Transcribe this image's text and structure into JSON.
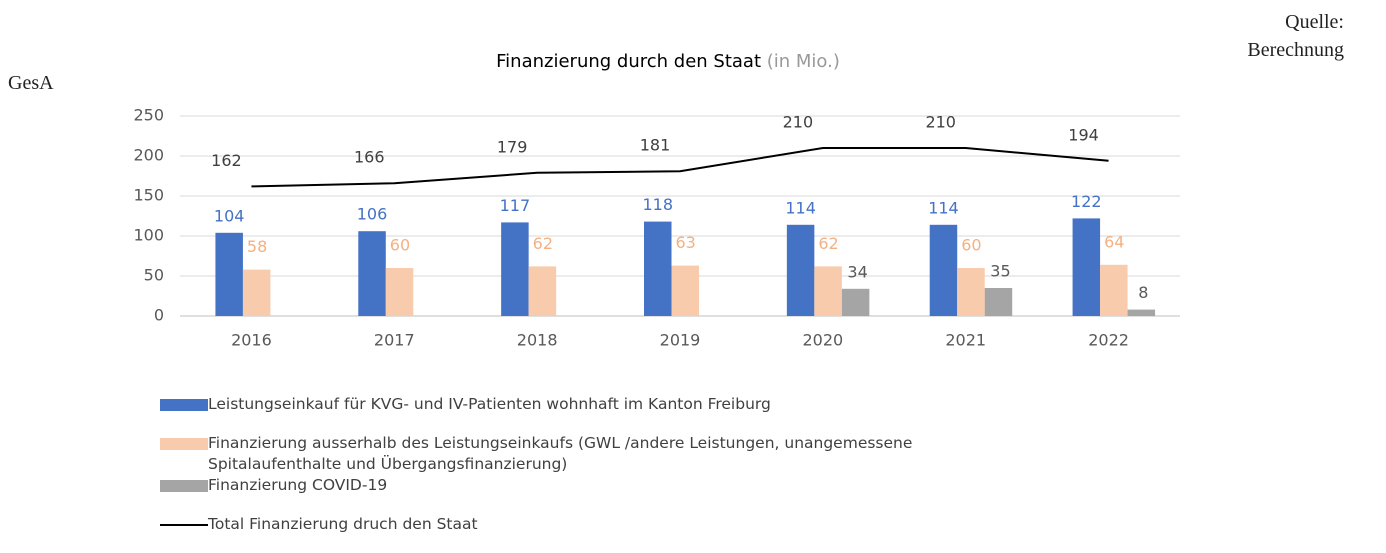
{
  "source_label": "Quelle:",
  "source_text": "Berechnung",
  "source_name": "GesA",
  "chart_data": {
    "type": "bar",
    "title": "Finanzierung durch den Staat",
    "subtitle": "(in Mio.)",
    "categories": [
      "2016",
      "2017",
      "2018",
      "2019",
      "2020",
      "2021",
      "2022"
    ],
    "series": [
      {
        "name": "Leistungseinkauf für KVG- und IV-Patienten wohnhaft im Kanton Freiburg",
        "color": "#4472c4",
        "label_color": "#4472c4",
        "values": [
          104,
          106,
          117,
          118,
          114,
          114,
          122
        ]
      },
      {
        "name": "Finanzierung ausserhalb des Leistungseinkaufs (GWL /andere Leistungen, unangemessene Spitalaufenthalte und Übergangsfinanzierung)",
        "color": "#f8cbad",
        "label_color": "#f4b183",
        "values": [
          58,
          60,
          62,
          63,
          62,
          60,
          64
        ]
      },
      {
        "name": "Finanzierung COVID-19",
        "color": "#a5a5a5",
        "label_color": "#595959",
        "values": [
          null,
          null,
          null,
          null,
          34,
          35,
          8
        ]
      },
      {
        "name": "Total Finanzierung druch den Staat",
        "type": "line",
        "color": "#000000",
        "label_color": "#404040",
        "values": [
          162,
          166,
          179,
          181,
          210,
          210,
          194
        ]
      }
    ],
    "ylim": [
      0,
      250
    ],
    "yticks": [
      0,
      50,
      100,
      150,
      200,
      250
    ],
    "grid": true,
    "legend": "bottom"
  }
}
